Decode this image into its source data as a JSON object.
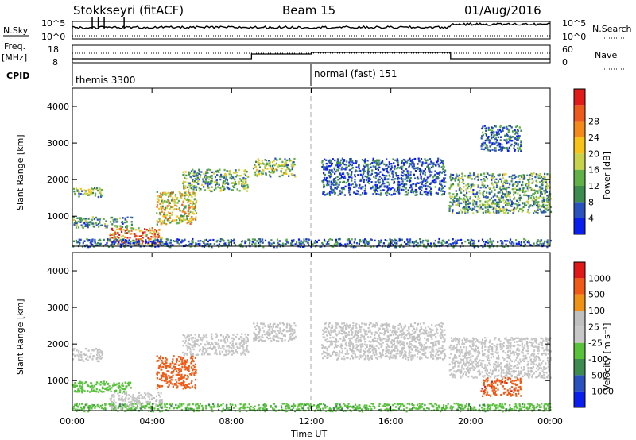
{
  "header": {
    "station": "Stokkseyri (fitACF)",
    "beam": "Beam 15",
    "date": "01/Aug/2016"
  },
  "panel_labels": {
    "nsky": "N.Sky",
    "nsky_hi": "10^5",
    "nsky_lo": "10^0",
    "nsearch": "N.Search",
    "nsearch_hi": "10^5",
    "nsearch_lo": "10^0",
    "freq": "Freq.",
    "freq_unit": "[MHz]",
    "freq_hi": "18",
    "freq_lo": "8",
    "nave": "Nave",
    "nave_hi": "60",
    "nave_lo": "0",
    "cpid": "CPID"
  },
  "cpid_modes": [
    {
      "label": "themis 3300",
      "start_hour": 0
    },
    {
      "label": "normal (fast) 151",
      "start_hour": 12
    }
  ],
  "colors": {
    "power": [
      "#0a1ef0",
      "#2a52be",
      "#3c8c50",
      "#62b048",
      "#c8d34a",
      "#f7c319",
      "#f58a1b",
      "#ee5a1a",
      "#e11a1a"
    ],
    "velocity": [
      "#e01818",
      "#f05a14",
      "#f09216",
      "#c0c0c0",
      "#c8c8c8",
      "#58c23a",
      "#3c8c50",
      "#2a52be",
      "#0a1ef0"
    ]
  },
  "chart_data": [
    {
      "type": "heatmap",
      "panel": "power",
      "xlabel": "",
      "ylabel": "Slant Range [km]",
      "xlim": [
        0,
        24
      ],
      "ylim": [
        180,
        4500
      ],
      "y_ticks": [
        "1000",
        "2000",
        "3000",
        "4000"
      ],
      "x_ticks": [
        "00:00",
        "04:00",
        "08:00",
        "12:00",
        "16:00",
        "20:00",
        "00:00"
      ],
      "colorbar": {
        "label": "Power [dB]",
        "ticks": [
          "4",
          "8",
          "12",
          "16",
          "20",
          "24",
          "28"
        ],
        "range": [
          0,
          30
        ]
      },
      "echo_regions": [
        {
          "t": [
            0,
            1.5
          ],
          "r": [
            1550,
            1800
          ],
          "v": 12
        },
        {
          "t": [
            0,
            3.0
          ],
          "r": [
            700,
            1000
          ],
          "v": 9
        },
        {
          "t": [
            1.8,
            4.5
          ],
          "r": [
            250,
            700
          ],
          "v": 22
        },
        {
          "t": [
            4.2,
            6.2
          ],
          "r": [
            800,
            1700
          ],
          "v": 16
        },
        {
          "t": [
            5.5,
            8.8
          ],
          "r": [
            1700,
            2300
          ],
          "v": 11
        },
        {
          "t": [
            9.0,
            11.2
          ],
          "r": [
            2100,
            2600
          ],
          "v": 12
        },
        {
          "t": [
            12.5,
            18.7
          ],
          "r": [
            1600,
            2600
          ],
          "v": 5
        },
        {
          "t": [
            18.9,
            24
          ],
          "r": [
            1100,
            2200
          ],
          "v": 10
        },
        {
          "t": [
            20.5,
            22.5
          ],
          "r": [
            2800,
            3500
          ],
          "v": 6
        },
        {
          "t": [
            0,
            24
          ],
          "r": [
            180,
            400
          ],
          "v": 6
        }
      ]
    },
    {
      "type": "heatmap",
      "panel": "velocity",
      "xlabel": "Time UT",
      "ylabel": "Slant Range [km]",
      "xlim": [
        0,
        24
      ],
      "ylim": [
        180,
        4500
      ],
      "y_ticks": [
        "1000",
        "2000",
        "3000",
        "4000"
      ],
      "x_ticks": [
        "00:00",
        "04:00",
        "08:00",
        "12:00",
        "16:00",
        "20:00",
        "00:00"
      ],
      "colorbar": {
        "label": "Velocity [m s⁻¹]",
        "ticks": [
          "1000",
          "500",
          "100",
          "25",
          "-25",
          "-100",
          "-500",
          "-1000"
        ]
      },
      "echo_regions": [
        {
          "t": [
            0,
            1.5
          ],
          "r": [
            1550,
            1900
          ],
          "v": 0
        },
        {
          "t": [
            0,
            3.0
          ],
          "r": [
            700,
            1000
          ],
          "v": 60
        },
        {
          "t": [
            1.8,
            4.5
          ],
          "r": [
            250,
            700
          ],
          "v": 0
        },
        {
          "t": [
            4.2,
            6.2
          ],
          "r": [
            800,
            1700
          ],
          "v": -300
        },
        {
          "t": [
            5.5,
            8.8
          ],
          "r": [
            1700,
            2300
          ],
          "v": 0
        },
        {
          "t": [
            9.0,
            11.2
          ],
          "r": [
            2100,
            2600
          ],
          "v": 0
        },
        {
          "t": [
            12.5,
            18.7
          ],
          "r": [
            1600,
            2600
          ],
          "v": 0
        },
        {
          "t": [
            18.9,
            24
          ],
          "r": [
            1100,
            2200
          ],
          "v": 0
        },
        {
          "t": [
            20.5,
            22.5
          ],
          "r": [
            600,
            1100
          ],
          "v": -400
        },
        {
          "t": [
            0,
            24
          ],
          "r": [
            180,
            400
          ],
          "v": 80
        }
      ]
    }
  ]
}
